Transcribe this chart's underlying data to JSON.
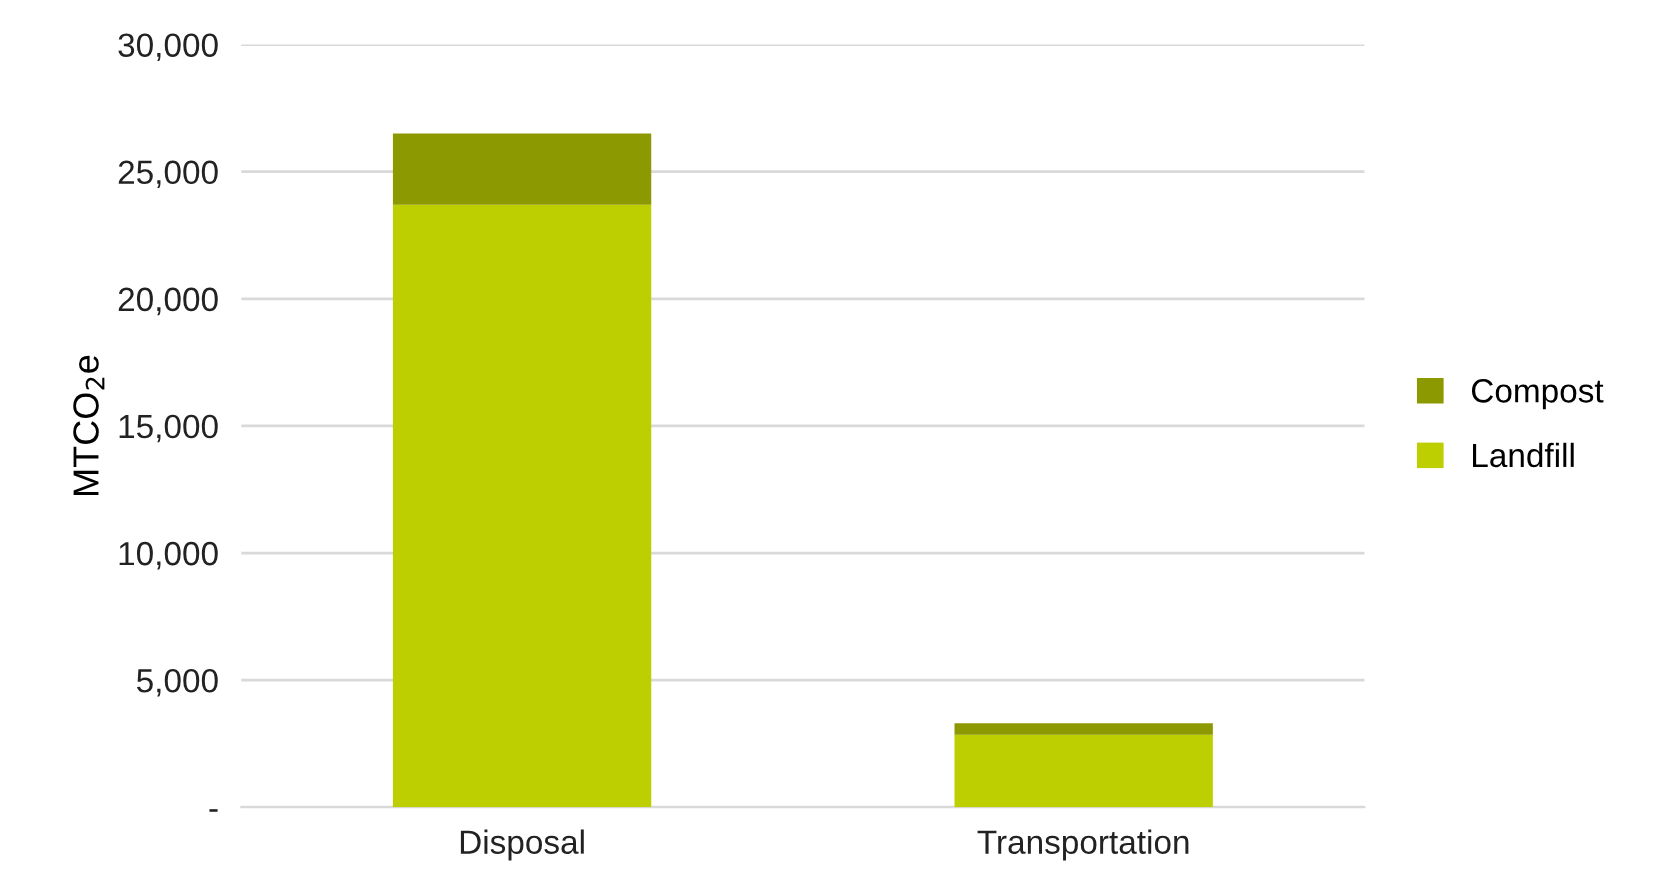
{
  "chart_data": {
    "type": "bar",
    "stacked": true,
    "ylabel": "MTCO$_{2}$e",
    "categories": [
      "Disposal",
      "Transportation"
    ],
    "series": [
      {
        "name": "Landfill",
        "color": "#bdcf00",
        "values": [
          23700,
          2850
        ]
      },
      {
        "name": "Compost",
        "color": "#8c9900",
        "values": [
          2800,
          450
        ]
      }
    ],
    "ylim": [
      0,
      30000
    ],
    "yticks": [
      {
        "value": 0,
        "label": "-"
      },
      {
        "value": 5000,
        "label": "5,000"
      },
      {
        "value": 10000,
        "label": "10,000"
      },
      {
        "value": 15000,
        "label": "15,000"
      },
      {
        "value": 20000,
        "label": "20,000"
      },
      {
        "value": 25000,
        "label": "25,000"
      },
      {
        "value": 30000,
        "label": "30,000"
      }
    ],
    "grid": "y",
    "legend": "right"
  }
}
